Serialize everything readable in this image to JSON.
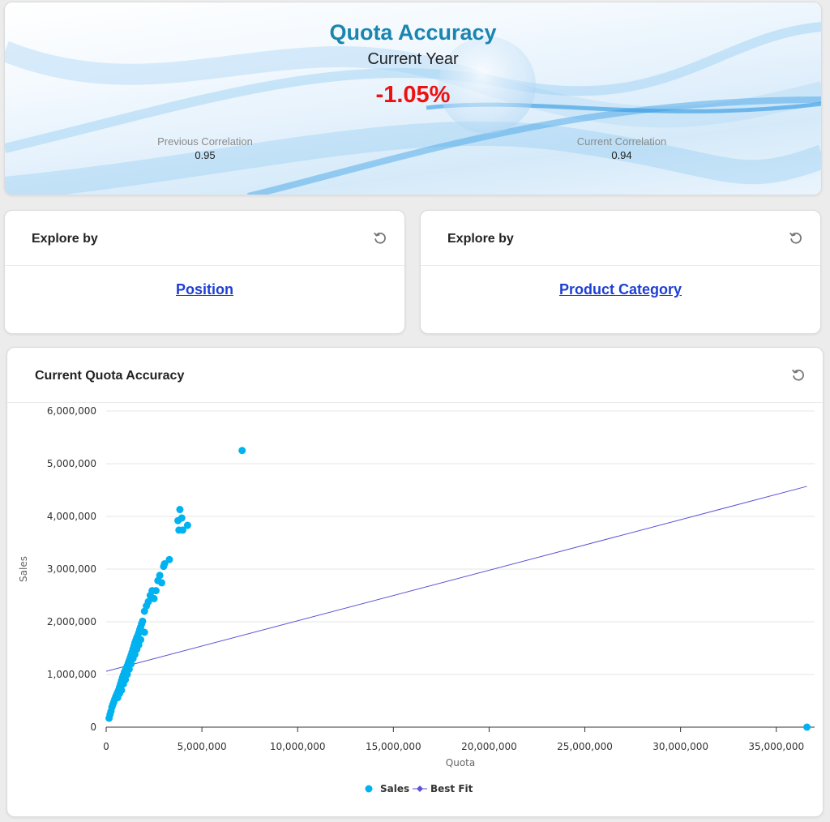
{
  "hero": {
    "title": "Quota Accuracy",
    "subtitle": "Current Year",
    "value": "-1.05%",
    "previous_label": "Previous Correlation",
    "previous_value": "0.95",
    "current_label": "Current Correlation",
    "current_value": "0.94"
  },
  "explore_cards": [
    {
      "title": "Explore by",
      "link": "Position"
    },
    {
      "title": "Explore by",
      "link": "Product Category"
    }
  ],
  "chart_card": {
    "title": "Current Quota Accuracy"
  },
  "icons": {
    "reset": "reset-icon"
  },
  "colors": {
    "title": "#1a86b0",
    "value": "#ee1111",
    "link": "#1e3fd4",
    "sales": "#00b2f0",
    "best_fit": "#5b52d6"
  },
  "chart_data": {
    "type": "scatter",
    "xlabel": "Quota",
    "ylabel": "Sales",
    "xlim": [
      0,
      37000000
    ],
    "ylim": [
      0,
      6000000
    ],
    "x_ticks": [
      "0",
      "5,000,000",
      "10,000,000",
      "15,000,000",
      "20,000,000",
      "25,000,000",
      "30,000,000",
      "35,000,000"
    ],
    "x_tick_values": [
      0,
      5000000,
      10000000,
      15000000,
      20000000,
      25000000,
      30000000,
      35000000
    ],
    "y_ticks": [
      "0",
      "1,000,000",
      "2,000,000",
      "3,000,000",
      "4,000,000",
      "5,000,000",
      "6,000,000"
    ],
    "y_tick_values": [
      0,
      1000000,
      2000000,
      3000000,
      4000000,
      5000000,
      6000000
    ],
    "grid": "horizontal",
    "legend": "bottom-center",
    "series": [
      {
        "name": "Sales",
        "kind": "scatter",
        "points": [
          [
            150000,
            170000
          ],
          [
            200000,
            240000
          ],
          [
            250000,
            300000
          ],
          [
            300000,
            380000
          ],
          [
            350000,
            430000
          ],
          [
            400000,
            480000
          ],
          [
            450000,
            530000
          ],
          [
            500000,
            580000
          ],
          [
            550000,
            620000
          ],
          [
            600000,
            660000
          ],
          [
            650000,
            700000
          ],
          [
            700000,
            760000
          ],
          [
            750000,
            820000
          ],
          [
            800000,
            880000
          ],
          [
            850000,
            940000
          ],
          [
            900000,
            990000
          ],
          [
            950000,
            1040000
          ],
          [
            1000000,
            1080000
          ],
          [
            1050000,
            1120000
          ],
          [
            1100000,
            1160000
          ],
          [
            1150000,
            1210000
          ],
          [
            1200000,
            1260000
          ],
          [
            1250000,
            1310000
          ],
          [
            1300000,
            1360000
          ],
          [
            1350000,
            1420000
          ],
          [
            1400000,
            1480000
          ],
          [
            1450000,
            1540000
          ],
          [
            1500000,
            1600000
          ],
          [
            1550000,
            1650000
          ],
          [
            1600000,
            1700000
          ],
          [
            1650000,
            1740000
          ],
          [
            1700000,
            1790000
          ],
          [
            1750000,
            1850000
          ],
          [
            1800000,
            1900000
          ],
          [
            1850000,
            1960000
          ],
          [
            1900000,
            2010000
          ],
          [
            600000,
            560000
          ],
          [
            700000,
            640000
          ],
          [
            800000,
            700000
          ],
          [
            900000,
            820000
          ],
          [
            1000000,
            900000
          ],
          [
            1100000,
            1000000
          ],
          [
            1200000,
            1100000
          ],
          [
            1300000,
            1200000
          ],
          [
            1400000,
            1300000
          ],
          [
            1500000,
            1380000
          ],
          [
            1600000,
            1480000
          ],
          [
            1700000,
            1560000
          ],
          [
            1800000,
            1660000
          ],
          [
            2000000,
            1800000
          ],
          [
            2000000,
            2200000
          ],
          [
            2100000,
            2300000
          ],
          [
            2200000,
            2380000
          ],
          [
            2300000,
            2500000
          ],
          [
            2400000,
            2590000
          ],
          [
            2500000,
            2440000
          ],
          [
            2600000,
            2590000
          ],
          [
            2700000,
            2780000
          ],
          [
            2800000,
            2880000
          ],
          [
            2900000,
            2740000
          ],
          [
            3000000,
            3050000
          ],
          [
            3050000,
            3100000
          ],
          [
            3300000,
            3180000
          ],
          [
            3750000,
            3920000
          ],
          [
            3800000,
            3740000
          ],
          [
            3850000,
            4130000
          ],
          [
            3950000,
            3970000
          ],
          [
            4000000,
            3740000
          ],
          [
            4250000,
            3830000
          ],
          [
            7100000,
            5250000
          ],
          [
            36600000,
            0
          ]
        ]
      },
      {
        "name": "Best Fit",
        "kind": "line",
        "points": [
          [
            0,
            1060000
          ],
          [
            36600000,
            4570000
          ]
        ]
      }
    ]
  }
}
